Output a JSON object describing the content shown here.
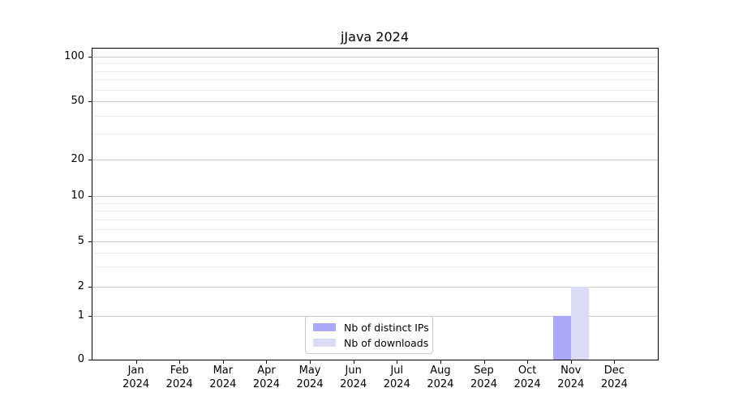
{
  "chart_data": {
    "type": "bar",
    "title": "jJava 2024",
    "categories": [
      "Jan 2024",
      "Feb 2024",
      "Mar 2024",
      "Apr 2024",
      "May 2024",
      "Jun 2024",
      "Jul 2024",
      "Aug 2024",
      "Sep 2024",
      "Oct 2024",
      "Nov 2024",
      "Dec 2024"
    ],
    "series": [
      {
        "name": "Nb of distinct IPs",
        "color": "#a9a9f7",
        "values": [
          0,
          0,
          0,
          0,
          0,
          0,
          0,
          0,
          0,
          0,
          1,
          0
        ]
      },
      {
        "name": "Nb of downloads",
        "color": "#dbdbf8",
        "values": [
          0,
          0,
          0,
          0,
          0,
          0,
          0,
          0,
          0,
          0,
          2,
          0
        ]
      }
    ],
    "xlabel": "",
    "ylabel": "",
    "yscale": "symlog",
    "y_major_ticks": [
      0,
      1,
      2,
      5,
      10,
      20,
      50,
      100
    ],
    "y_minor_ticks": [
      3,
      4,
      6,
      7,
      8,
      9,
      30,
      40,
      60,
      70,
      80,
      90
    ],
    "ylim": [
      0,
      120
    ],
    "grid": true,
    "legend_position": "lower center inside"
  }
}
